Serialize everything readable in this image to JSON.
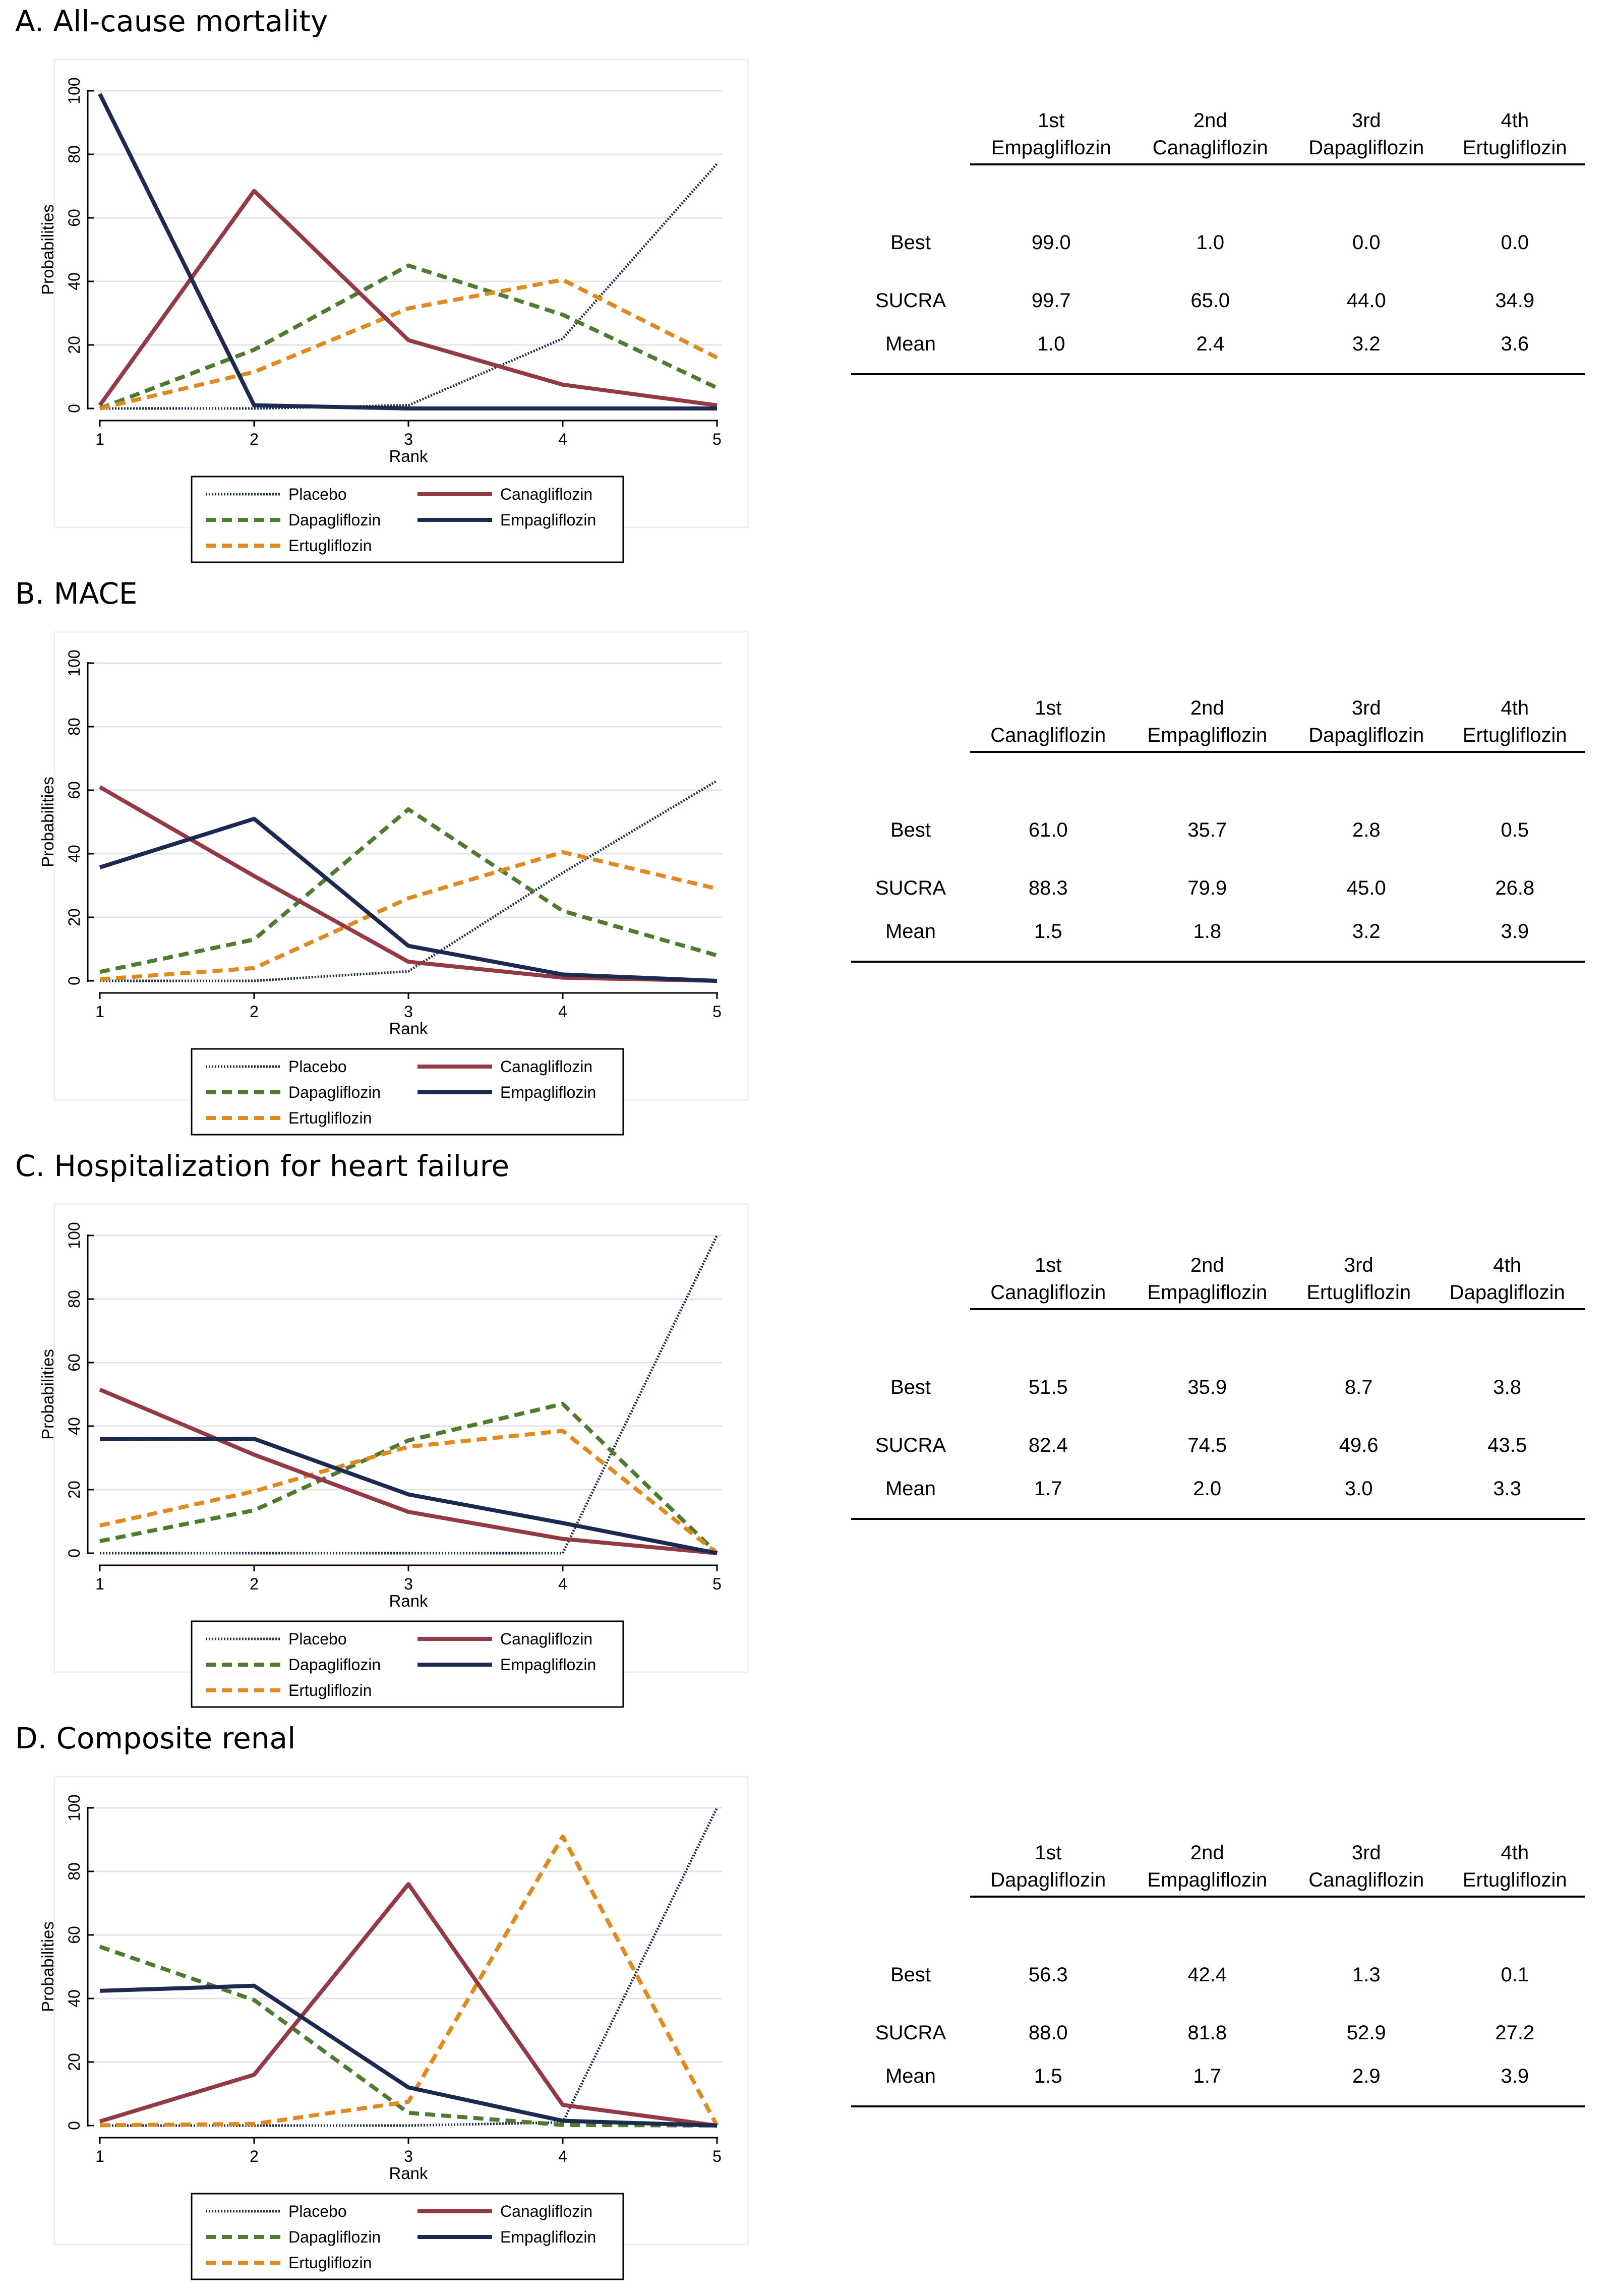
{
  "colors": {
    "placebo": "#1f2f4a",
    "canagliflozin": "#943a46",
    "dapagliflozin": "#4f7a2f",
    "empagliflozin": "#1c2a52",
    "ertugliflozin": "#e08a1d"
  },
  "legend": {
    "placebo": "Placebo",
    "canagliflozin": "Canagliflozin",
    "dapagliflozin": "Dapagliflozin",
    "empagliflozin": "Empagliflozin",
    "ertugliflozin": "Ertugliflozin"
  },
  "table_labels": {
    "ordinals": [
      "1st",
      "2nd",
      "3rd",
      "4th"
    ],
    "best": "Best",
    "sucra": "SUCRA",
    "mean": "Mean"
  },
  "panels": [
    {
      "title": "A. All-cause mortality",
      "ranking": {
        "drugs": [
          "Empagliflozin",
          "Canagliflozin",
          "Dapagliflozin",
          "Ertugliflozin"
        ],
        "best": [
          "99.0",
          "1.0",
          "0.0",
          "0.0"
        ],
        "sucra": [
          "99.7",
          "65.0",
          "44.0",
          "34.9"
        ],
        "mean": [
          "1.0",
          "2.4",
          "3.2",
          "3.6"
        ]
      }
    },
    {
      "title": "B. MACE",
      "ranking": {
        "drugs": [
          "Canagliflozin",
          "Empagliflozin",
          "Dapagliflozin",
          "Ertugliflozin"
        ],
        "best": [
          "61.0",
          "35.7",
          "2.8",
          "0.5"
        ],
        "sucra": [
          "88.3",
          "79.9",
          "45.0",
          "26.8"
        ],
        "mean": [
          "1.5",
          "1.8",
          "3.2",
          "3.9"
        ]
      }
    },
    {
      "title": "C. Hospitalization for heart failure",
      "ranking": {
        "drugs": [
          "Canagliflozin",
          "Empagliflozin",
          "Ertugliflozin",
          "Dapagliflozin"
        ],
        "best": [
          "51.5",
          "35.9",
          "8.7",
          "3.8"
        ],
        "sucra": [
          "82.4",
          "74.5",
          "49.6",
          "43.5"
        ],
        "mean": [
          "1.7",
          "2.0",
          "3.0",
          "3.3"
        ]
      }
    },
    {
      "title": "D. Composite renal",
      "ranking": {
        "drugs": [
          "Dapagliflozin",
          "Empagliflozin",
          "Canagliflozin",
          "Ertugliflozin"
        ],
        "best": [
          "56.3",
          "42.4",
          "1.3",
          "0.1"
        ],
        "sucra": [
          "88.0",
          "81.8",
          "52.9",
          "27.2"
        ],
        "mean": [
          "1.5",
          "1.7",
          "2.9",
          "3.9"
        ]
      }
    }
  ],
  "chart_data": [
    {
      "type": "line",
      "title": "A. All-cause mortality",
      "xlabel": "Rank",
      "ylabel": "Probabilities",
      "x": [
        1,
        2,
        3,
        4,
        5
      ],
      "xticks": [
        "1",
        "2",
        "3",
        "4",
        "5"
      ],
      "yticks": [
        "0",
        "20",
        "40",
        "60",
        "80",
        "100"
      ],
      "ylim": [
        0,
        100
      ],
      "series": [
        {
          "key": "placebo",
          "name": "Placebo",
          "values": [
            0,
            0,
            1,
            22,
            77
          ]
        },
        {
          "key": "dapagliflozin",
          "name": "Dapagliflozin",
          "values": [
            0,
            18.5,
            45,
            29.5,
            6.5
          ]
        },
        {
          "key": "ertugliflozin",
          "name": "Ertugliflozin",
          "values": [
            0,
            11.5,
            31.5,
            40.5,
            16
          ]
        },
        {
          "key": "canagliflozin",
          "name": "Canagliflozin",
          "values": [
            1,
            68.5,
            21.5,
            7.5,
            1
          ]
        },
        {
          "key": "empagliflozin",
          "name": "Empagliflozin",
          "values": [
            99,
            1,
            0,
            0,
            0
          ]
        }
      ]
    },
    {
      "type": "line",
      "title": "B. MACE",
      "xlabel": "Rank",
      "ylabel": "Probabilities",
      "x": [
        1,
        2,
        3,
        4,
        5
      ],
      "xticks": [
        "1",
        "2",
        "3",
        "4",
        "5"
      ],
      "yticks": [
        "0",
        "20",
        "40",
        "60",
        "80",
        "100"
      ],
      "ylim": [
        0,
        100
      ],
      "series": [
        {
          "key": "placebo",
          "name": "Placebo",
          "values": [
            0,
            0,
            3,
            34,
            63
          ]
        },
        {
          "key": "dapagliflozin",
          "name": "Dapagliflozin",
          "values": [
            2.8,
            13,
            54,
            22,
            8
          ]
        },
        {
          "key": "ertugliflozin",
          "name": "Ertugliflozin",
          "values": [
            0.5,
            4,
            26,
            40.5,
            29
          ]
        },
        {
          "key": "canagliflozin",
          "name": "Canagliflozin",
          "values": [
            61,
            33,
            6,
            1,
            0
          ]
        },
        {
          "key": "empagliflozin",
          "name": "Empagliflozin",
          "values": [
            35.7,
            51,
            11,
            2,
            0
          ]
        }
      ]
    },
    {
      "type": "line",
      "title": "C. Hospitalization for heart failure",
      "xlabel": "Rank",
      "ylabel": "Probabilities",
      "x": [
        1,
        2,
        3,
        4,
        5
      ],
      "xticks": [
        "1",
        "2",
        "3",
        "4",
        "5"
      ],
      "yticks": [
        "0",
        "20",
        "40",
        "60",
        "80",
        "100"
      ],
      "ylim": [
        0,
        100
      ],
      "series": [
        {
          "key": "placebo",
          "name": "Placebo",
          "values": [
            0,
            0,
            0,
            0,
            100
          ]
        },
        {
          "key": "dapagliflozin",
          "name": "Dapagliflozin",
          "values": [
            3.8,
            13.5,
            35.5,
            47,
            0
          ]
        },
        {
          "key": "ertugliflozin",
          "name": "Ertugliflozin",
          "values": [
            8.7,
            19.5,
            33.5,
            38.5,
            0
          ]
        },
        {
          "key": "canagliflozin",
          "name": "Canagliflozin",
          "values": [
            51.5,
            31,
            13,
            4.5,
            0
          ]
        },
        {
          "key": "empagliflozin",
          "name": "Empagliflozin",
          "values": [
            35.9,
            36,
            18.5,
            9.5,
            0
          ]
        }
      ]
    },
    {
      "type": "line",
      "title": "D. Composite renal",
      "xlabel": "Rank",
      "ylabel": "Probabilities",
      "x": [
        1,
        2,
        3,
        4,
        5
      ],
      "xticks": [
        "1",
        "2",
        "3",
        "4",
        "5"
      ],
      "yticks": [
        "0",
        "20",
        "40",
        "60",
        "80",
        "100"
      ],
      "ylim": [
        0,
        100
      ],
      "series": [
        {
          "key": "placebo",
          "name": "Placebo",
          "values": [
            0,
            0,
            0,
            1,
            100
          ]
        },
        {
          "key": "dapagliflozin",
          "name": "Dapagliflozin",
          "values": [
            56.3,
            39.5,
            4,
            0.2,
            0
          ]
        },
        {
          "key": "ertugliflozin",
          "name": "Ertugliflozin",
          "values": [
            0.1,
            0.5,
            7.5,
            91,
            0
          ]
        },
        {
          "key": "canagliflozin",
          "name": "Canagliflozin",
          "values": [
            1.3,
            16,
            76,
            6.5,
            0
          ]
        },
        {
          "key": "empagliflozin",
          "name": "Empagliflozin",
          "values": [
            42.4,
            44,
            12,
            1.5,
            0
          ]
        }
      ]
    }
  ]
}
